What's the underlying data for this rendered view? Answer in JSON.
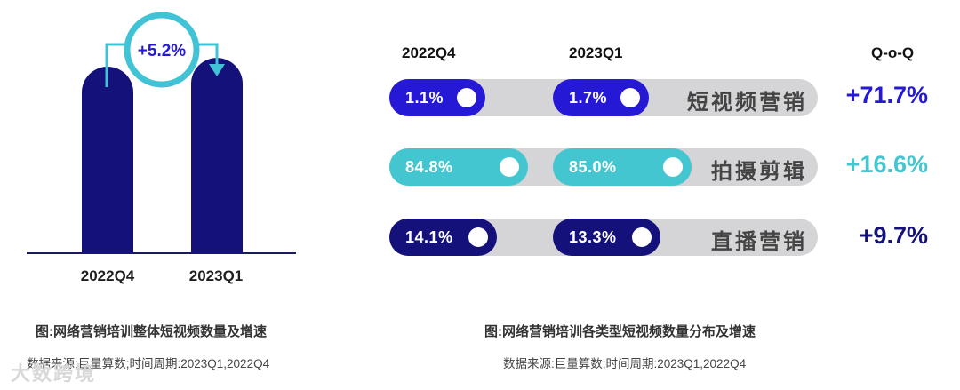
{
  "chart_data": [
    {
      "type": "bar",
      "categories": [
        "2022Q4",
        "2023Q1"
      ],
      "values": [
        100,
        105.2
      ],
      "growth_label": "+5.2%",
      "caption": "图:网络营销培训整体短视频数量及增速",
      "source": "数据来源:巨量算数;时间周期:2023Q1,2022Q4",
      "colors": {
        "bar": "#14127a",
        "arrow": "#41c3d6",
        "axis": "#1a1a5e"
      }
    },
    {
      "type": "bar",
      "orientation": "horizontal",
      "columns": [
        "2022Q4",
        "2023Q1",
        "Q-o-Q"
      ],
      "rows": [
        {
          "category": "短视频营销",
          "v2022q4": 1.1,
          "v2023q1": 1.7,
          "label_2022q4": "1.1%",
          "label_2023q1": "1.7%",
          "qoq": "+71.7%",
          "color": "#2519d6",
          "qoq_color": "#2519d6"
        },
        {
          "category": "拍摄剪辑",
          "v2022q4": 84.8,
          "v2023q1": 85.0,
          "label_2022q4": "84.8%",
          "label_2023q1": "85.0%",
          "qoq": "+16.6%",
          "color": "#44c6d0",
          "qoq_color": "#44c6d0"
        },
        {
          "category": "直播营销",
          "v2022q4": 14.1,
          "v2023q1": 13.3,
          "label_2022q4": "14.1%",
          "label_2023q1": "13.3%",
          "qoq": "+9.7%",
          "color": "#14127a",
          "qoq_color": "#14127a"
        }
      ],
      "caption": "图:网络营销培训各类型短视频数量分布及增速",
      "source": "数据来源:巨量算数;时间周期:2023Q1,2022Q4",
      "track_color": "#d5d5d7"
    }
  ],
  "watermark": "大数跨境"
}
